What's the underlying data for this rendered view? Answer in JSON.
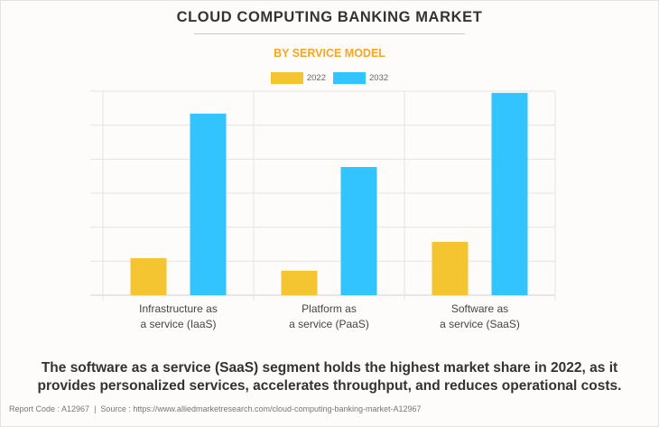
{
  "header": {
    "title": "CLOUD COMPUTING BANKING MARKET",
    "subtitle": "BY SERVICE MODEL"
  },
  "colors": {
    "series_2022": "#f4c531",
    "series_2032": "#31c4fe",
    "subtitle": "#f5a623"
  },
  "legend": [
    {
      "label": "2022",
      "color": "#f4c531"
    },
    {
      "label": "2032",
      "color": "#31c4fe"
    }
  ],
  "chart_data": {
    "type": "bar",
    "title": "CLOUD COMPUTING BANKING MARKET",
    "subtitle": "BY SERVICE MODEL",
    "xlabel": "",
    "ylabel": "",
    "value_note": "No y-axis values shown; values are relative, in gridline units",
    "categories": [
      [
        "Infrastructure as",
        "a service (IaaS)"
      ],
      [
        "Platform as",
        "a service (PaaS)"
      ],
      [
        "Software as",
        "a service (SaaS)"
      ]
    ],
    "series": [
      {
        "name": "2022",
        "values": [
          1.09,
          0.72,
          1.57
        ]
      },
      {
        "name": "2032",
        "values": [
          5.34,
          3.77,
          5.95
        ]
      }
    ],
    "ylim": [
      0,
      6
    ],
    "grid": true,
    "legend_position": "top-center"
  },
  "caption": {
    "line1": "The software as a service (SaaS) segment holds the highest market share in 2022, as it",
    "line2": "provides personalized services, accelerates throughput, and reduces operational costs."
  },
  "footer": {
    "text": "Report Code : A12967  |  Source : https://www.alliedmarketresearch.com/cloud-computing-banking-market-A12967"
  }
}
